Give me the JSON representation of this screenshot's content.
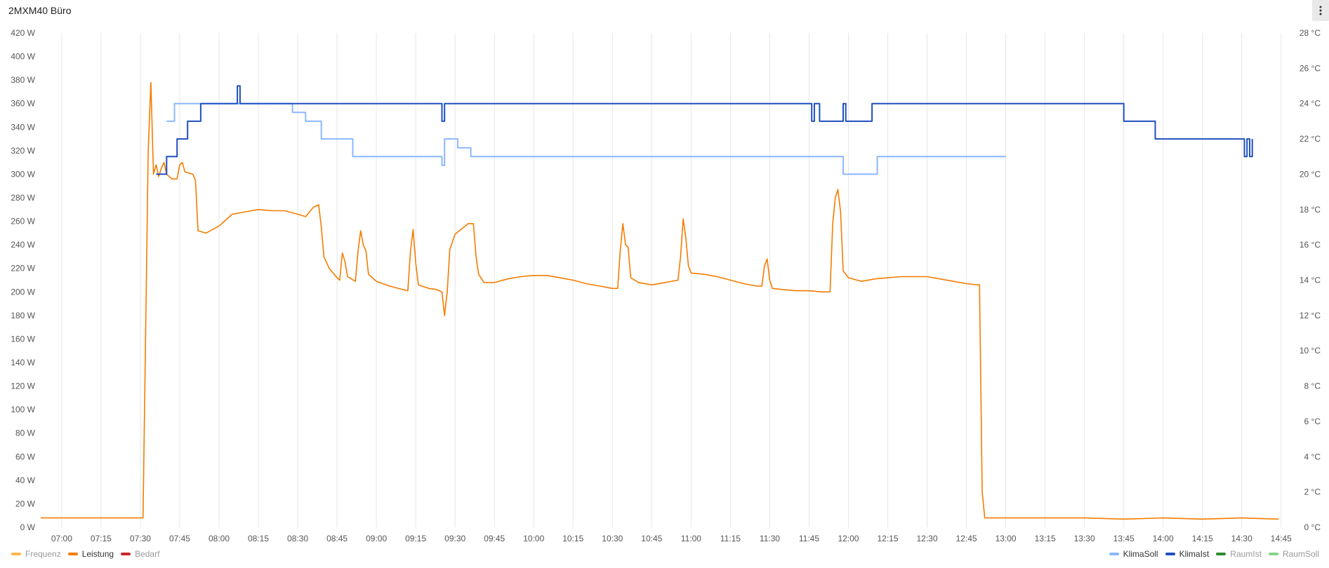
{
  "panel": {
    "title": "2MXM40 Büro"
  },
  "menu": {
    "icon": "more-vertical-icon"
  },
  "chart_data": {
    "type": "line",
    "xlabel": "",
    "ylabel": "",
    "x_ticks": [
      "07:00",
      "07:15",
      "07:30",
      "07:45",
      "08:00",
      "08:15",
      "08:30",
      "08:45",
      "09:00",
      "09:15",
      "09:30",
      "09:45",
      "10:00",
      "10:15",
      "10:30",
      "10:45",
      "11:00",
      "11:15",
      "11:30",
      "11:45",
      "12:00",
      "12:15",
      "12:30",
      "12:45",
      "13:00",
      "13:15",
      "13:30",
      "13:45",
      "14:00",
      "14:15",
      "14:30",
      "14:45"
    ],
    "xlim": [
      "06:52",
      "14:48"
    ],
    "y_left": {
      "unit": "W",
      "ylim": [
        0,
        420
      ],
      "ticks": [
        "0 W",
        "20 W",
        "40 W",
        "60 W",
        "80 W",
        "100 W",
        "120 W",
        "140 W",
        "160 W",
        "180 W",
        "200 W",
        "220 W",
        "240 W",
        "260 W",
        "280 W",
        "300 W",
        "320 W",
        "340 W",
        "360 W",
        "380 W",
        "400 W",
        "420 W"
      ]
    },
    "y_right": {
      "unit": "°C",
      "ylim": [
        0,
        28
      ],
      "ticks": [
        "0 °C",
        "2 °C",
        "4 °C",
        "6 °C",
        "8 °C",
        "10 °C",
        "12 °C",
        "14 °C",
        "16 °C",
        "18 °C",
        "20 °C",
        "22 °C",
        "24 °C",
        "26 °C",
        "28 °C"
      ]
    },
    "grid": true,
    "series": [
      {
        "name": "Leistung",
        "axis": "left",
        "color": "#f57c00",
        "step": false,
        "points": [
          [
            "06:52",
            8
          ],
          [
            "07:00",
            8
          ],
          [
            "07:10",
            8
          ],
          [
            "07:20",
            8
          ],
          [
            "07:30",
            8
          ],
          [
            "07:31",
            8
          ],
          [
            "07:33",
            320
          ],
          [
            "07:34",
            378
          ],
          [
            "07:35",
            300
          ],
          [
            "07:36",
            308
          ],
          [
            "07:37",
            298
          ],
          [
            "07:38",
            305
          ],
          [
            "07:39",
            310
          ],
          [
            "07:40",
            300
          ],
          [
            "07:42",
            296
          ],
          [
            "07:44",
            296
          ],
          [
            "07:45",
            308
          ],
          [
            "07:46",
            310
          ],
          [
            "07:47",
            302
          ],
          [
            "07:50",
            300
          ],
          [
            "07:51",
            295
          ],
          [
            "07:52",
            252
          ],
          [
            "07:55",
            250
          ],
          [
            "08:00",
            256
          ],
          [
            "08:05",
            266
          ],
          [
            "08:10",
            268
          ],
          [
            "08:15",
            270
          ],
          [
            "08:20",
            269
          ],
          [
            "08:25",
            269
          ],
          [
            "08:30",
            266
          ],
          [
            "08:33",
            264
          ],
          [
            "08:36",
            272
          ],
          [
            "08:38",
            274
          ],
          [
            "08:39",
            255
          ],
          [
            "08:40",
            230
          ],
          [
            "08:42",
            220
          ],
          [
            "08:45",
            212
          ],
          [
            "08:46",
            210
          ],
          [
            "08:47",
            233
          ],
          [
            "08:48",
            226
          ],
          [
            "08:49",
            213
          ],
          [
            "08:52",
            209
          ],
          [
            "08:53",
            235
          ],
          [
            "08:54",
            252
          ],
          [
            "08:55",
            240
          ],
          [
            "08:56",
            235
          ],
          [
            "08:57",
            215
          ],
          [
            "09:00",
            209
          ],
          [
            "09:05",
            205
          ],
          [
            "09:10",
            202
          ],
          [
            "09:12",
            201
          ],
          [
            "09:13",
            235
          ],
          [
            "09:14",
            253
          ],
          [
            "09:15",
            225
          ],
          [
            "09:16",
            206
          ],
          [
            "09:20",
            203
          ],
          [
            "09:23",
            202
          ],
          [
            "09:25",
            200
          ],
          [
            "09:26",
            180
          ],
          [
            "09:27",
            200
          ],
          [
            "09:28",
            236
          ],
          [
            "09:30",
            249
          ],
          [
            "09:35",
            258
          ],
          [
            "09:37",
            258
          ],
          [
            "09:38",
            230
          ],
          [
            "09:39",
            215
          ],
          [
            "09:41",
            208
          ],
          [
            "09:45",
            208
          ],
          [
            "09:50",
            211
          ],
          [
            "09:55",
            213
          ],
          [
            "10:00",
            214
          ],
          [
            "10:05",
            214
          ],
          [
            "10:10",
            212
          ],
          [
            "10:15",
            210
          ],
          [
            "10:20",
            207
          ],
          [
            "10:25",
            205
          ],
          [
            "10:30",
            203
          ],
          [
            "10:32",
            203
          ],
          [
            "10:33",
            235
          ],
          [
            "10:34",
            258
          ],
          [
            "10:35",
            240
          ],
          [
            "10:36",
            238
          ],
          [
            "10:37",
            212
          ],
          [
            "10:40",
            208
          ],
          [
            "10:45",
            206
          ],
          [
            "10:50",
            208
          ],
          [
            "10:55",
            210
          ],
          [
            "10:56",
            230
          ],
          [
            "10:57",
            262
          ],
          [
            "10:58",
            246
          ],
          [
            "10:59",
            222
          ],
          [
            "11:00",
            216
          ],
          [
            "11:05",
            215
          ],
          [
            "11:10",
            213
          ],
          [
            "11:15",
            210
          ],
          [
            "11:20",
            207
          ],
          [
            "11:25",
            205
          ],
          [
            "11:27",
            205
          ],
          [
            "11:28",
            222
          ],
          [
            "11:29",
            228
          ],
          [
            "11:30",
            210
          ],
          [
            "11:31",
            203
          ],
          [
            "11:35",
            202
          ],
          [
            "11:40",
            201
          ],
          [
            "11:45",
            201
          ],
          [
            "11:50",
            200
          ],
          [
            "11:53",
            200
          ],
          [
            "11:54",
            258
          ],
          [
            "11:55",
            280
          ],
          [
            "11:56",
            287
          ],
          [
            "11:57",
            268
          ],
          [
            "11:58",
            218
          ],
          [
            "12:00",
            212
          ],
          [
            "12:05",
            209
          ],
          [
            "12:10",
            211
          ],
          [
            "12:15",
            212
          ],
          [
            "12:20",
            213
          ],
          [
            "12:25",
            213
          ],
          [
            "12:30",
            213
          ],
          [
            "12:35",
            211
          ],
          [
            "12:40",
            209
          ],
          [
            "12:45",
            207
          ],
          [
            "12:49",
            206
          ],
          [
            "12:50",
            206
          ],
          [
            "12:51",
            30
          ],
          [
            "12:52",
            8
          ],
          [
            "13:00",
            8
          ],
          [
            "13:15",
            8
          ],
          [
            "13:30",
            8
          ],
          [
            "13:45",
            7
          ],
          [
            "14:00",
            8
          ],
          [
            "14:15",
            7
          ],
          [
            "14:30",
            8
          ],
          [
            "14:44",
            7
          ]
        ]
      },
      {
        "name": "KlimaSoll",
        "axis": "right",
        "color": "#8ab8ff",
        "step": true,
        "points": [
          [
            "07:40",
            23
          ],
          [
            "07:43",
            23
          ],
          [
            "07:43",
            24
          ],
          [
            "07:50",
            24
          ],
          [
            "08:28",
            24
          ],
          [
            "08:28",
            23.5
          ],
          [
            "08:33",
            23.5
          ],
          [
            "08:33",
            23
          ],
          [
            "08:39",
            23
          ],
          [
            "08:39",
            22
          ],
          [
            "08:51",
            22
          ],
          [
            "08:51",
            21
          ],
          [
            "09:25",
            21
          ],
          [
            "09:25",
            20.5
          ],
          [
            "09:26",
            20.5
          ],
          [
            "09:26",
            22
          ],
          [
            "09:31",
            22
          ],
          [
            "09:31",
            21.5
          ],
          [
            "09:36",
            21.5
          ],
          [
            "09:36",
            21
          ],
          [
            "11:58",
            21
          ],
          [
            "11:58",
            20
          ],
          [
            "12:11",
            20
          ],
          [
            "12:11",
            21
          ],
          [
            "13:00",
            21
          ]
        ]
      },
      {
        "name": "KlimaIst",
        "axis": "right",
        "color": "#1f4fbf",
        "step": true,
        "points": [
          [
            "07:36",
            20
          ],
          [
            "07:40",
            20
          ],
          [
            "07:40",
            21
          ],
          [
            "07:44",
            21
          ],
          [
            "07:44",
            22
          ],
          [
            "07:48",
            22
          ],
          [
            "07:48",
            23
          ],
          [
            "07:53",
            23
          ],
          [
            "07:53",
            24
          ],
          [
            "08:07",
            24
          ],
          [
            "08:07",
            25
          ],
          [
            "08:08",
            25
          ],
          [
            "08:08",
            24
          ],
          [
            "09:25",
            24
          ],
          [
            "09:25",
            23
          ],
          [
            "09:26",
            23
          ],
          [
            "09:26",
            24
          ],
          [
            "11:46",
            24
          ],
          [
            "11:46",
            23
          ],
          [
            "11:47",
            23
          ],
          [
            "11:47",
            24
          ],
          [
            "11:49",
            24
          ],
          [
            "11:49",
            23
          ],
          [
            "11:58",
            23
          ],
          [
            "11:58",
            24
          ],
          [
            "11:59",
            24
          ],
          [
            "11:59",
            23
          ],
          [
            "12:09",
            23
          ],
          [
            "12:09",
            24
          ],
          [
            "13:45",
            24
          ],
          [
            "13:45",
            23
          ],
          [
            "13:57",
            23
          ],
          [
            "13:57",
            22
          ],
          [
            "14:31",
            22
          ],
          [
            "14:31",
            21
          ],
          [
            "14:32",
            21
          ],
          [
            "14:32",
            22
          ],
          [
            "14:33",
            22
          ],
          [
            "14:33",
            21
          ],
          [
            "14:34",
            21
          ],
          [
            "14:34",
            22
          ]
        ]
      }
    ]
  },
  "legend_left": [
    {
      "label": "Frequenz",
      "color": "#ffb74d",
      "active": false
    },
    {
      "label": "Leistung",
      "color": "#f57c00",
      "active": true
    },
    {
      "label": "Bedarf",
      "color": "#c62828",
      "active": false
    }
  ],
  "legend_right": [
    {
      "label": "KlimaSoll",
      "color": "#8ab8ff",
      "active": true
    },
    {
      "label": "KlimaIst",
      "color": "#1f4fbf",
      "active": true
    },
    {
      "label": "RaumIst",
      "color": "#2e8b2e",
      "active": false
    },
    {
      "label": "RaumSoll",
      "color": "#86d386",
      "active": false
    }
  ]
}
